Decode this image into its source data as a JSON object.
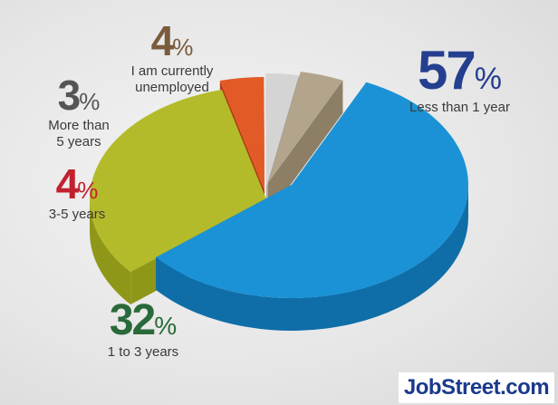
{
  "chart_data": {
    "type": "pie",
    "slices": [
      {
        "label": "Less than 1 year",
        "value": 57,
        "percent_text": "57",
        "color": "#1b92d6",
        "side": "#0f6ea8",
        "label_color": "#243f8f"
      },
      {
        "label": "1 to 3 years",
        "value": 32,
        "percent_text": "32",
        "color": "#b4bb2a",
        "side": "#8f9718",
        "label_color": "#2a6a3a"
      },
      {
        "label": "3-5 years",
        "value": 4,
        "percent_text": "4",
        "color": "#e25a25",
        "side": "#b43e12",
        "label_color": "#c2202e"
      },
      {
        "label": "More than 5 years",
        "value": 3,
        "percent_text": "3",
        "color": "#d4d4d4",
        "side": "#a9a9a9",
        "label_color": "#555555"
      },
      {
        "label": "I am currently unemployed",
        "value": 4,
        "percent_text": "4",
        "color": "#b3a58c",
        "side": "#8c7f66",
        "label_color": "#7a5b3c"
      }
    ],
    "percent_symbol": "%"
  },
  "labels": {
    "less_than_1_line1": "Less than 1 year",
    "one_to_three_line1": "1 to 3 years",
    "three_to_five_line1": "3-5 years",
    "more_than_5_line1": "More than",
    "more_than_5_line2": "5 years",
    "unemployed_line1": "I am currently",
    "unemployed_line2": "unemployed"
  },
  "brand": {
    "logo_text": "JobStreet.com"
  }
}
